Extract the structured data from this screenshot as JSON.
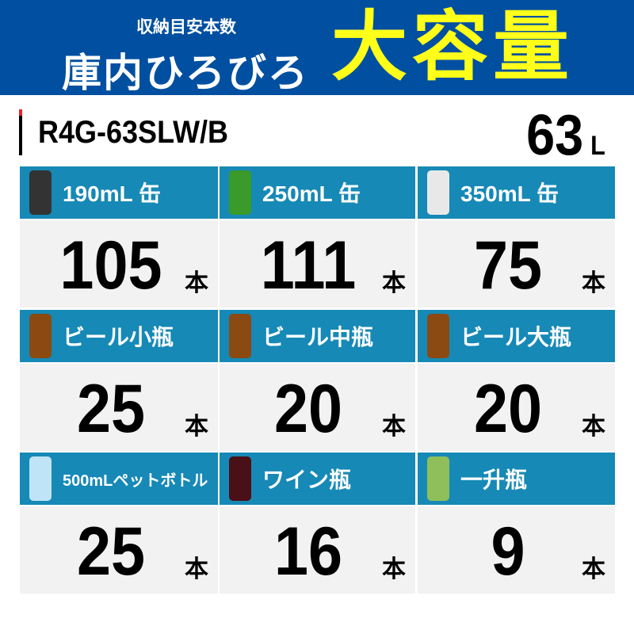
{
  "banner": {
    "subtitle": "収納目安本数",
    "lead": "庫内ひろびろ",
    "headline": "大容量"
  },
  "model": "R4G-63SLW/B",
  "capacity": {
    "value": "63",
    "unit": "L"
  },
  "colors": {
    "banner": "#004fa0",
    "headline": "#ffff1a",
    "header_cell": "#1689b6",
    "cell": "#f2f2f2",
    "accent": "#e8222a"
  },
  "items": [
    {
      "label": "190mL 缶",
      "icon": "coffee-can-icon",
      "count": "105",
      "unit": "本"
    },
    {
      "label": "250mL 缶",
      "icon": "cider-can-icon",
      "count": "111",
      "unit": "本"
    },
    {
      "label": "350mL 缶",
      "icon": "beer-can-icon",
      "count": "75",
      "unit": "本"
    },
    {
      "label": "ビール小瓶",
      "icon": "beer-bottle-icon",
      "count": "25",
      "unit": "本"
    },
    {
      "label": "ビール中瓶",
      "icon": "beer-bottle-icon",
      "count": "20",
      "unit": "本"
    },
    {
      "label": "ビール大瓶",
      "icon": "beer-bottle-icon",
      "count": "20",
      "unit": "本"
    },
    {
      "label": "500mLペットボトル",
      "icon": "pet-bottle-icon",
      "count": "25",
      "unit": "本"
    },
    {
      "label": "ワイン瓶",
      "icon": "wine-bottle-icon",
      "count": "16",
      "unit": "本"
    },
    {
      "label": "一升瓶",
      "icon": "sake-bottle-icon",
      "count": "9",
      "unit": "本"
    }
  ]
}
